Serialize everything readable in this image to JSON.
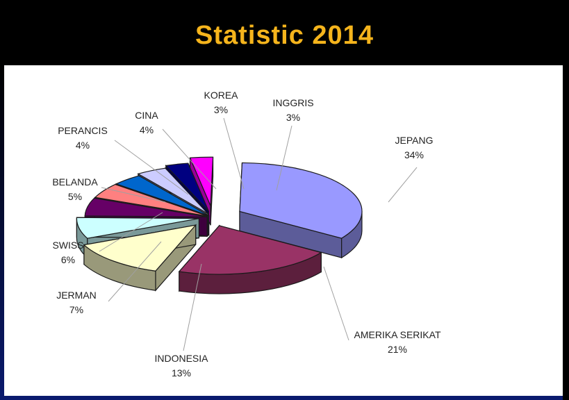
{
  "slide": {
    "title": "Statistic 2014"
  },
  "chart_data": {
    "type": "pie",
    "title": "Statistic 2014",
    "three_d": true,
    "exploded": true,
    "legend": "none",
    "slices": [
      {
        "label": "JEPANG",
        "value": 34,
        "value_label": "34%",
        "color": "#9999ff"
      },
      {
        "label": "AMERIKA SERIKAT",
        "value": 21,
        "value_label": "21%",
        "color": "#993366"
      },
      {
        "label": "INDONESIA",
        "value": 13,
        "value_label": "13%",
        "color": "#ffffcc"
      },
      {
        "label": "JERMAN",
        "value": 7,
        "value_label": "7%",
        "color": "#ccffff"
      },
      {
        "label": "SWISS",
        "value": 6,
        "value_label": "6%",
        "color": "#660066"
      },
      {
        "label": "BELANDA",
        "value": 5,
        "value_label": "5%",
        "color": "#ff8080"
      },
      {
        "label": "PERANCIS",
        "value": 4,
        "value_label": "4%",
        "color": "#0066cc"
      },
      {
        "label": "CINA",
        "value": 4,
        "value_label": "4%",
        "color": "#ccccff"
      },
      {
        "label": "KOREA",
        "value": 3,
        "value_label": "3%",
        "color": "#000080"
      },
      {
        "label": "INGGRIS",
        "value": 3,
        "value_label": "3%",
        "color": "#ff00ff"
      }
    ]
  }
}
